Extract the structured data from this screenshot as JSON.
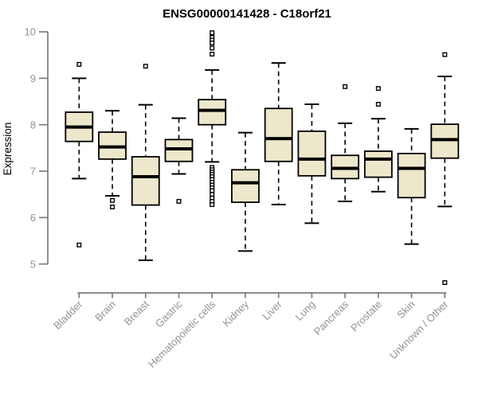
{
  "colors": {
    "box_fill": "#EDE8CC",
    "box_stroke": "#000000",
    "median": "#000000",
    "whisker": "#000000",
    "axis_line": "#7d7d7d",
    "axis_text": "#8f9398",
    "title_text": "#000000",
    "background": "#ffffff"
  },
  "chart_data": {
    "type": "boxplot",
    "title": "ENSG00000141428 - C18orf21",
    "ylabel": "Expression",
    "xlabel": "",
    "ylim": [
      5,
      10
    ],
    "yticks": [
      5,
      6,
      7,
      8,
      9,
      10
    ],
    "grid": false,
    "legend": "none",
    "categories": [
      "Bladder",
      "Brain",
      "Breast",
      "Gastric",
      "Hematopoietic cells",
      "Kidney",
      "Liver",
      "Lung",
      "Pancreas",
      "Prostate",
      "Skin",
      "Unknown / Other"
    ],
    "series": [
      {
        "name": "Bladder",
        "low": 6.84,
        "q1": 7.64,
        "median": 7.95,
        "q3": 8.27,
        "high": 9.0,
        "outliers": [
          9.3,
          5.41
        ]
      },
      {
        "name": "Brain",
        "low": 6.47,
        "q1": 7.26,
        "median": 7.52,
        "q3": 7.84,
        "high": 8.3,
        "outliers": [
          6.37,
          6.23
        ]
      },
      {
        "name": "Breast",
        "low": 5.08,
        "q1": 6.27,
        "median": 6.88,
        "q3": 7.31,
        "high": 8.43,
        "outliers": [
          9.26
        ]
      },
      {
        "name": "Gastric",
        "low": 6.94,
        "q1": 7.21,
        "median": 7.48,
        "q3": 7.68,
        "high": 8.14,
        "outliers": [
          6.35
        ]
      },
      {
        "name": "Hematopoietic cells",
        "low": 7.2,
        "q1": 8.0,
        "median": 8.31,
        "q3": 8.54,
        "high": 9.18,
        "outliers": [
          9.98,
          9.88,
          9.82,
          9.76,
          9.65,
          9.52,
          7.08,
          7.03,
          6.98,
          6.93,
          6.88,
          6.82,
          6.76,
          6.7,
          6.64,
          6.58,
          6.5,
          6.42,
          6.35,
          6.28
        ]
      },
      {
        "name": "Kidney",
        "low": 5.28,
        "q1": 6.33,
        "median": 6.75,
        "q3": 7.03,
        "high": 7.83,
        "outliers": []
      },
      {
        "name": "Liver",
        "low": 6.28,
        "q1": 7.21,
        "median": 7.7,
        "q3": 8.35,
        "high": 9.33,
        "outliers": []
      },
      {
        "name": "Lung",
        "low": 5.88,
        "q1": 6.9,
        "median": 7.26,
        "q3": 7.86,
        "high": 8.44,
        "outliers": []
      },
      {
        "name": "Pancreas",
        "low": 6.35,
        "q1": 6.84,
        "median": 7.06,
        "q3": 7.34,
        "high": 8.03,
        "outliers": [
          8.82
        ]
      },
      {
        "name": "Prostate",
        "low": 6.56,
        "q1": 6.87,
        "median": 7.26,
        "q3": 7.43,
        "high": 8.13,
        "outliers": [
          8.78,
          8.44
        ]
      },
      {
        "name": "Skin",
        "low": 5.43,
        "q1": 6.43,
        "median": 7.06,
        "q3": 7.38,
        "high": 7.91,
        "outliers": []
      },
      {
        "name": "Unknown / Other",
        "low": 6.24,
        "q1": 7.28,
        "median": 7.68,
        "q3": 8.01,
        "high": 9.04,
        "outliers": [
          9.51,
          4.6
        ]
      }
    ]
  }
}
